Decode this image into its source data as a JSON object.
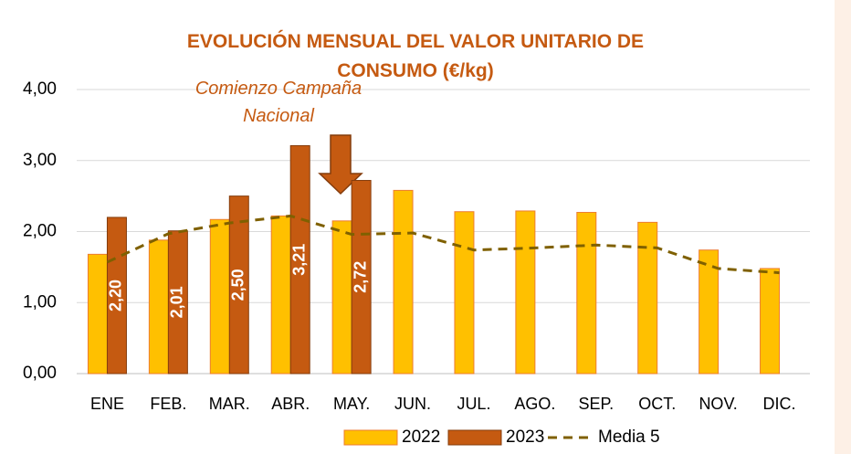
{
  "chart_data": {
    "type": "bar",
    "title": "EVOLUCIÓN MENSUAL DEL VALOR UNITARIO DE CONSUMO (€/kg)",
    "annotation": "Comienzo Campaña Nacional",
    "categories": [
      "ENE",
      "FEB.",
      "MAR.",
      "ABR.",
      "MAY.",
      "JUN.",
      "JUL.",
      "AGO.",
      "SEP.",
      "OCT.",
      "NOV.",
      "DIC."
    ],
    "series": [
      {
        "name": "2022",
        "color": "#ffc000",
        "values": [
          1.68,
          1.88,
          2.17,
          2.22,
          2.15,
          2.58,
          2.28,
          2.29,
          2.27,
          2.13,
          1.74,
          1.48
        ]
      },
      {
        "name": "2023",
        "color": "#c55a11",
        "values": [
          2.2,
          2.01,
          2.5,
          3.21,
          2.72,
          null,
          null,
          null,
          null,
          null,
          null,
          null
        ],
        "value_labels": [
          "2,20",
          "2,01",
          "2,50",
          "3,21",
          "2,72",
          null,
          null,
          null,
          null,
          null,
          null,
          null
        ]
      },
      {
        "name": "Media 5",
        "type": "line",
        "color": "#7f6000",
        "dashed": true,
        "values": [
          1.57,
          1.97,
          2.12,
          2.22,
          1.96,
          1.98,
          1.74,
          1.77,
          1.81,
          1.77,
          1.48,
          1.42
        ]
      }
    ],
    "ylim": [
      0,
      4
    ],
    "yticks": [
      {
        "value": 0,
        "label": "0,00"
      },
      {
        "value": 1,
        "label": "1,00"
      },
      {
        "value": 2,
        "label": "2,00"
      },
      {
        "value": 3,
        "label": "3,00"
      },
      {
        "value": 4,
        "label": "4,00"
      }
    ],
    "grid": true,
    "legend": "bottom"
  }
}
